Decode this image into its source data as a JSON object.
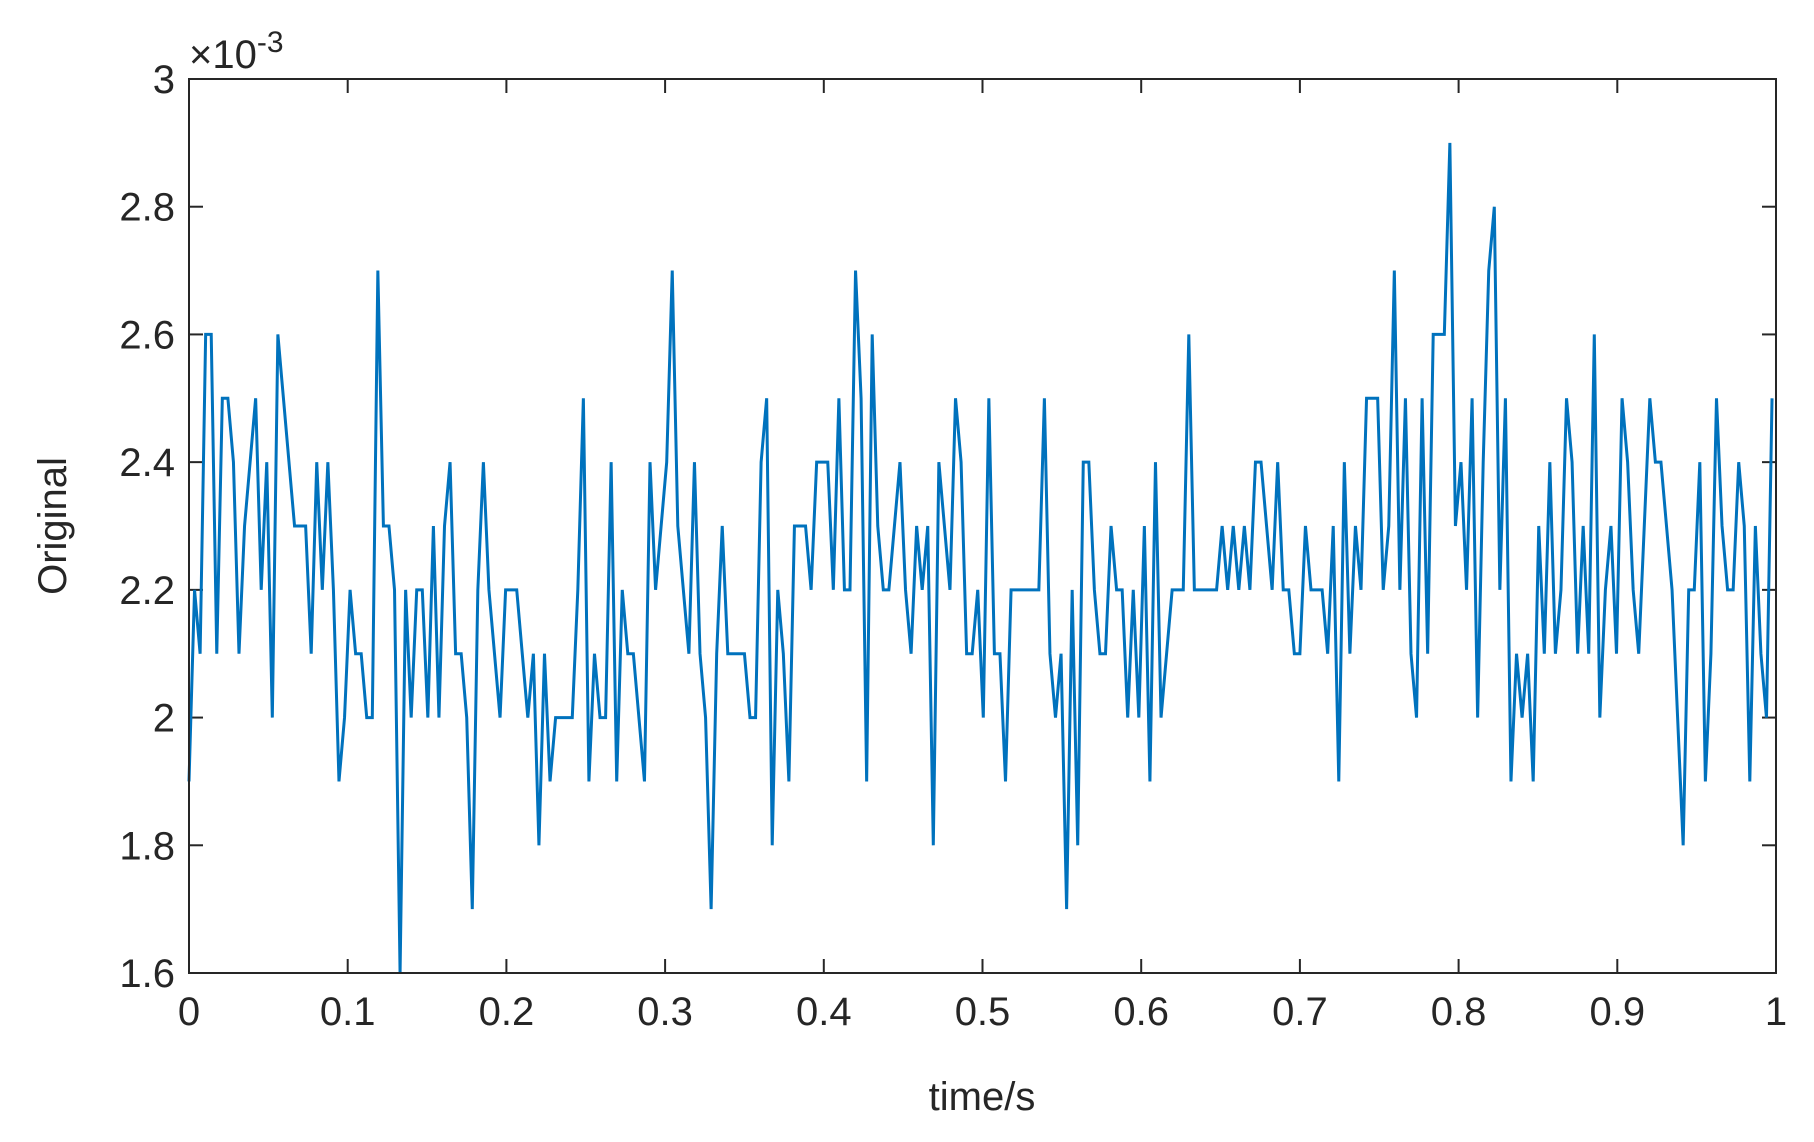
{
  "chart_data": {
    "type": "line",
    "xlabel": "time/s",
    "ylabel": "Original",
    "y_multiplier": {
      "base": "×10",
      "exponent": "-3"
    },
    "xlim": [
      0,
      1
    ],
    "xticks": [
      0,
      0.1,
      0.2,
      0.3,
      0.4,
      0.5,
      0.6,
      0.7,
      0.8,
      0.9,
      1
    ],
    "ylim": [
      1.6,
      3
    ],
    "yticks": [
      1.6,
      1.8,
      2,
      2.2,
      2.4,
      2.6,
      2.8,
      3
    ],
    "grid": false,
    "x": [
      0,
      0.0035,
      0.007,
      0.0105,
      0.014,
      0.0175,
      0.021,
      0.0245,
      0.028,
      0.0315,
      0.035,
      0.0385,
      0.042,
      0.0455,
      0.049,
      0.0525,
      0.056,
      0.0595,
      0.063,
      0.0665,
      0.07,
      0.0735,
      0.077,
      0.0805,
      0.084,
      0.0875,
      0.091,
      0.0945,
      0.098,
      0.1015,
      0.105,
      0.1085,
      0.112,
      0.1155,
      0.119,
      0.1225,
      0.126,
      0.1295,
      0.133,
      0.1365,
      0.14,
      0.1435,
      0.147,
      0.1505,
      0.154,
      0.1575,
      0.161,
      0.1645,
      0.168,
      0.1715,
      0.175,
      0.1785,
      0.182,
      0.1855,
      0.189,
      0.1925,
      0.196,
      0.1995,
      0.203,
      0.2065,
      0.21,
      0.2135,
      0.217,
      0.2205,
      0.224,
      0.2275,
      0.231,
      0.2345,
      0.238,
      0.2415,
      0.245,
      0.2485,
      0.252,
      0.2555,
      0.259,
      0.2625,
      0.266,
      0.2695,
      0.273,
      0.2765,
      0.28,
      0.2835,
      0.287,
      0.2905,
      0.294,
      0.2975,
      0.301,
      0.3045,
      0.308,
      0.3115,
      0.315,
      0.3185,
      0.322,
      0.3255,
      0.329,
      0.3325,
      0.336,
      0.3395,
      0.343,
      0.3465,
      0.35,
      0.3535,
      0.357,
      0.3605,
      0.364,
      0.3675,
      0.371,
      0.3745,
      0.378,
      0.3815,
      0.385,
      0.3885,
      0.392,
      0.3955,
      0.399,
      0.4025,
      0.406,
      0.4095,
      0.413,
      0.4165,
      0.42,
      0.4235,
      0.427,
      0.4305,
      0.434,
      0.4375,
      0.441,
      0.4445,
      0.448,
      0.4515,
      0.455,
      0.4585,
      0.462,
      0.4655,
      0.469,
      0.4725,
      0.476,
      0.4795,
      0.483,
      0.4865,
      0.49,
      0.4935,
      0.497,
      0.5005,
      0.504,
      0.5075,
      0.511,
      0.5145,
      0.518,
      0.5215,
      0.525,
      0.5285,
      0.532,
      0.5355,
      0.539,
      0.5425,
      0.546,
      0.5495,
      0.553,
      0.5565,
      0.56,
      0.5635,
      0.567,
      0.5705,
      0.574,
      0.5775,
      0.581,
      0.5845,
      0.588,
      0.5915,
      0.595,
      0.5985,
      0.602,
      0.6055,
      0.609,
      0.6125,
      0.616,
      0.6195,
      0.623,
      0.6265,
      0.63,
      0.6335,
      0.637,
      0.6405,
      0.644,
      0.6475,
      0.651,
      0.6545,
      0.658,
      0.6615,
      0.665,
      0.6685,
      0.672,
      0.6755,
      0.679,
      0.6825,
      0.686,
      0.6895,
      0.693,
      0.6965,
      0.7,
      0.7035,
      0.707,
      0.7105,
      0.714,
      0.7175,
      0.721,
      0.7245,
      0.728,
      0.7315,
      0.735,
      0.7385,
      0.742,
      0.7455,
      0.749,
      0.7525,
      0.756,
      0.7595,
      0.763,
      0.7665,
      0.77,
      0.7735,
      0.777,
      0.7805,
      0.784,
      0.7875,
      0.791,
      0.7945,
      0.798,
      0.8015,
      0.805,
      0.8085,
      0.812,
      0.8155,
      0.819,
      0.8225,
      0.826,
      0.8295,
      0.833,
      0.8365,
      0.84,
      0.8435,
      0.847,
      0.8505,
      0.854,
      0.8575,
      0.861,
      0.8645,
      0.868,
      0.8715,
      0.875,
      0.8785,
      0.882,
      0.8855,
      0.889,
      0.8925,
      0.896,
      0.8995,
      0.903,
      0.9065,
      0.91,
      0.9135,
      0.917,
      0.9205,
      0.924,
      0.9275,
      0.931,
      0.9345,
      0.938,
      0.9415,
      0.945,
      0.9485,
      0.952,
      0.9555,
      0.959,
      0.9625,
      0.966,
      0.9695,
      0.973,
      0.9765,
      0.98,
      0.9835,
      0.987,
      0.9905,
      0.994,
      0.9975
    ],
    "series": [
      {
        "color": "#0072bd",
        "values": [
          1.9,
          2.2,
          2.1,
          2.6,
          2.6,
          2.1,
          2.5,
          2.5,
          2.4,
          2.1,
          2.3,
          2.4,
          2.5,
          2.2,
          2.4,
          2.0,
          2.6,
          2.5,
          2.4,
          2.3,
          2.3,
          2.3,
          2.1,
          2.4,
          2.2,
          2.4,
          2.2,
          1.9,
          2.0,
          2.2,
          2.1,
          2.1,
          2.0,
          2.0,
          2.7,
          2.3,
          2.3,
          2.2,
          1.6,
          2.2,
          2.0,
          2.2,
          2.2,
          2.0,
          2.3,
          2.0,
          2.3,
          2.4,
          2.1,
          2.1,
          2.0,
          1.7,
          2.2,
          2.4,
          2.2,
          2.1,
          2.0,
          2.2,
          2.2,
          2.2,
          2.1,
          2.0,
          2.1,
          1.8,
          2.1,
          1.9,
          2.0,
          2.0,
          2.0,
          2.0,
          2.2,
          2.5,
          1.9,
          2.1,
          2.0,
          2.0,
          2.4,
          1.9,
          2.2,
          2.1,
          2.1,
          2.0,
          1.9,
          2.4,
          2.2,
          2.3,
          2.4,
          2.7,
          2.3,
          2.2,
          2.1,
          2.4,
          2.1,
          2.0,
          1.7,
          2.1,
          2.3,
          2.1,
          2.1,
          2.1,
          2.1,
          2.0,
          2.0,
          2.4,
          2.5,
          1.8,
          2.2,
          2.1,
          1.9,
          2.3,
          2.3,
          2.3,
          2.2,
          2.4,
          2.4,
          2.4,
          2.2,
          2.5,
          2.2,
          2.2,
          2.7,
          2.5,
          1.9,
          2.6,
          2.3,
          2.2,
          2.2,
          2.3,
          2.4,
          2.2,
          2.1,
          2.3,
          2.2,
          2.3,
          1.8,
          2.4,
          2.3,
          2.2,
          2.5,
          2.4,
          2.1,
          2.1,
          2.2,
          2.0,
          2.5,
          2.1,
          2.1,
          1.9,
          2.2,
          2.2,
          2.2,
          2.2,
          2.2,
          2.2,
          2.5,
          2.1,
          2.0,
          2.1,
          1.7,
          2.2,
          1.8,
          2.4,
          2.4,
          2.2,
          2.1,
          2.1,
          2.3,
          2.2,
          2.2,
          2.0,
          2.2,
          2.0,
          2.3,
          1.9,
          2.4,
          2.0,
          2.1,
          2.2,
          2.2,
          2.2,
          2.6,
          2.2,
          2.2,
          2.2,
          2.2,
          2.2,
          2.3,
          2.2,
          2.3,
          2.2,
          2.3,
          2.2,
          2.4,
          2.4,
          2.3,
          2.2,
          2.4,
          2.2,
          2.2,
          2.1,
          2.1,
          2.3,
          2.2,
          2.2,
          2.2,
          2.1,
          2.3,
          1.9,
          2.4,
          2.1,
          2.3,
          2.2,
          2.5,
          2.5,
          2.5,
          2.2,
          2.3,
          2.7,
          2.2,
          2.5,
          2.1,
          2.0,
          2.5,
          2.1,
          2.6,
          2.6,
          2.6,
          2.9,
          2.3,
          2.4,
          2.2,
          2.5,
          2.0,
          2.4,
          2.7,
          2.8,
          2.2,
          2.5,
          1.9,
          2.1,
          2.0,
          2.1,
          1.9,
          2.3,
          2.1,
          2.4,
          2.1,
          2.2,
          2.5,
          2.4,
          2.1,
          2.3,
          2.1,
          2.6,
          2.0,
          2.2,
          2.3,
          2.1,
          2.5,
          2.4,
          2.2,
          2.1,
          2.3,
          2.5,
          2.4,
          2.4,
          2.3,
          2.2,
          2.0,
          1.8,
          2.2,
          2.2,
          2.4,
          1.9,
          2.1,
          2.5,
          2.3,
          2.2,
          2.2,
          2.4,
          2.3,
          1.9,
          2.3,
          2.1,
          2.0,
          2.5
        ]
      }
    ]
  }
}
